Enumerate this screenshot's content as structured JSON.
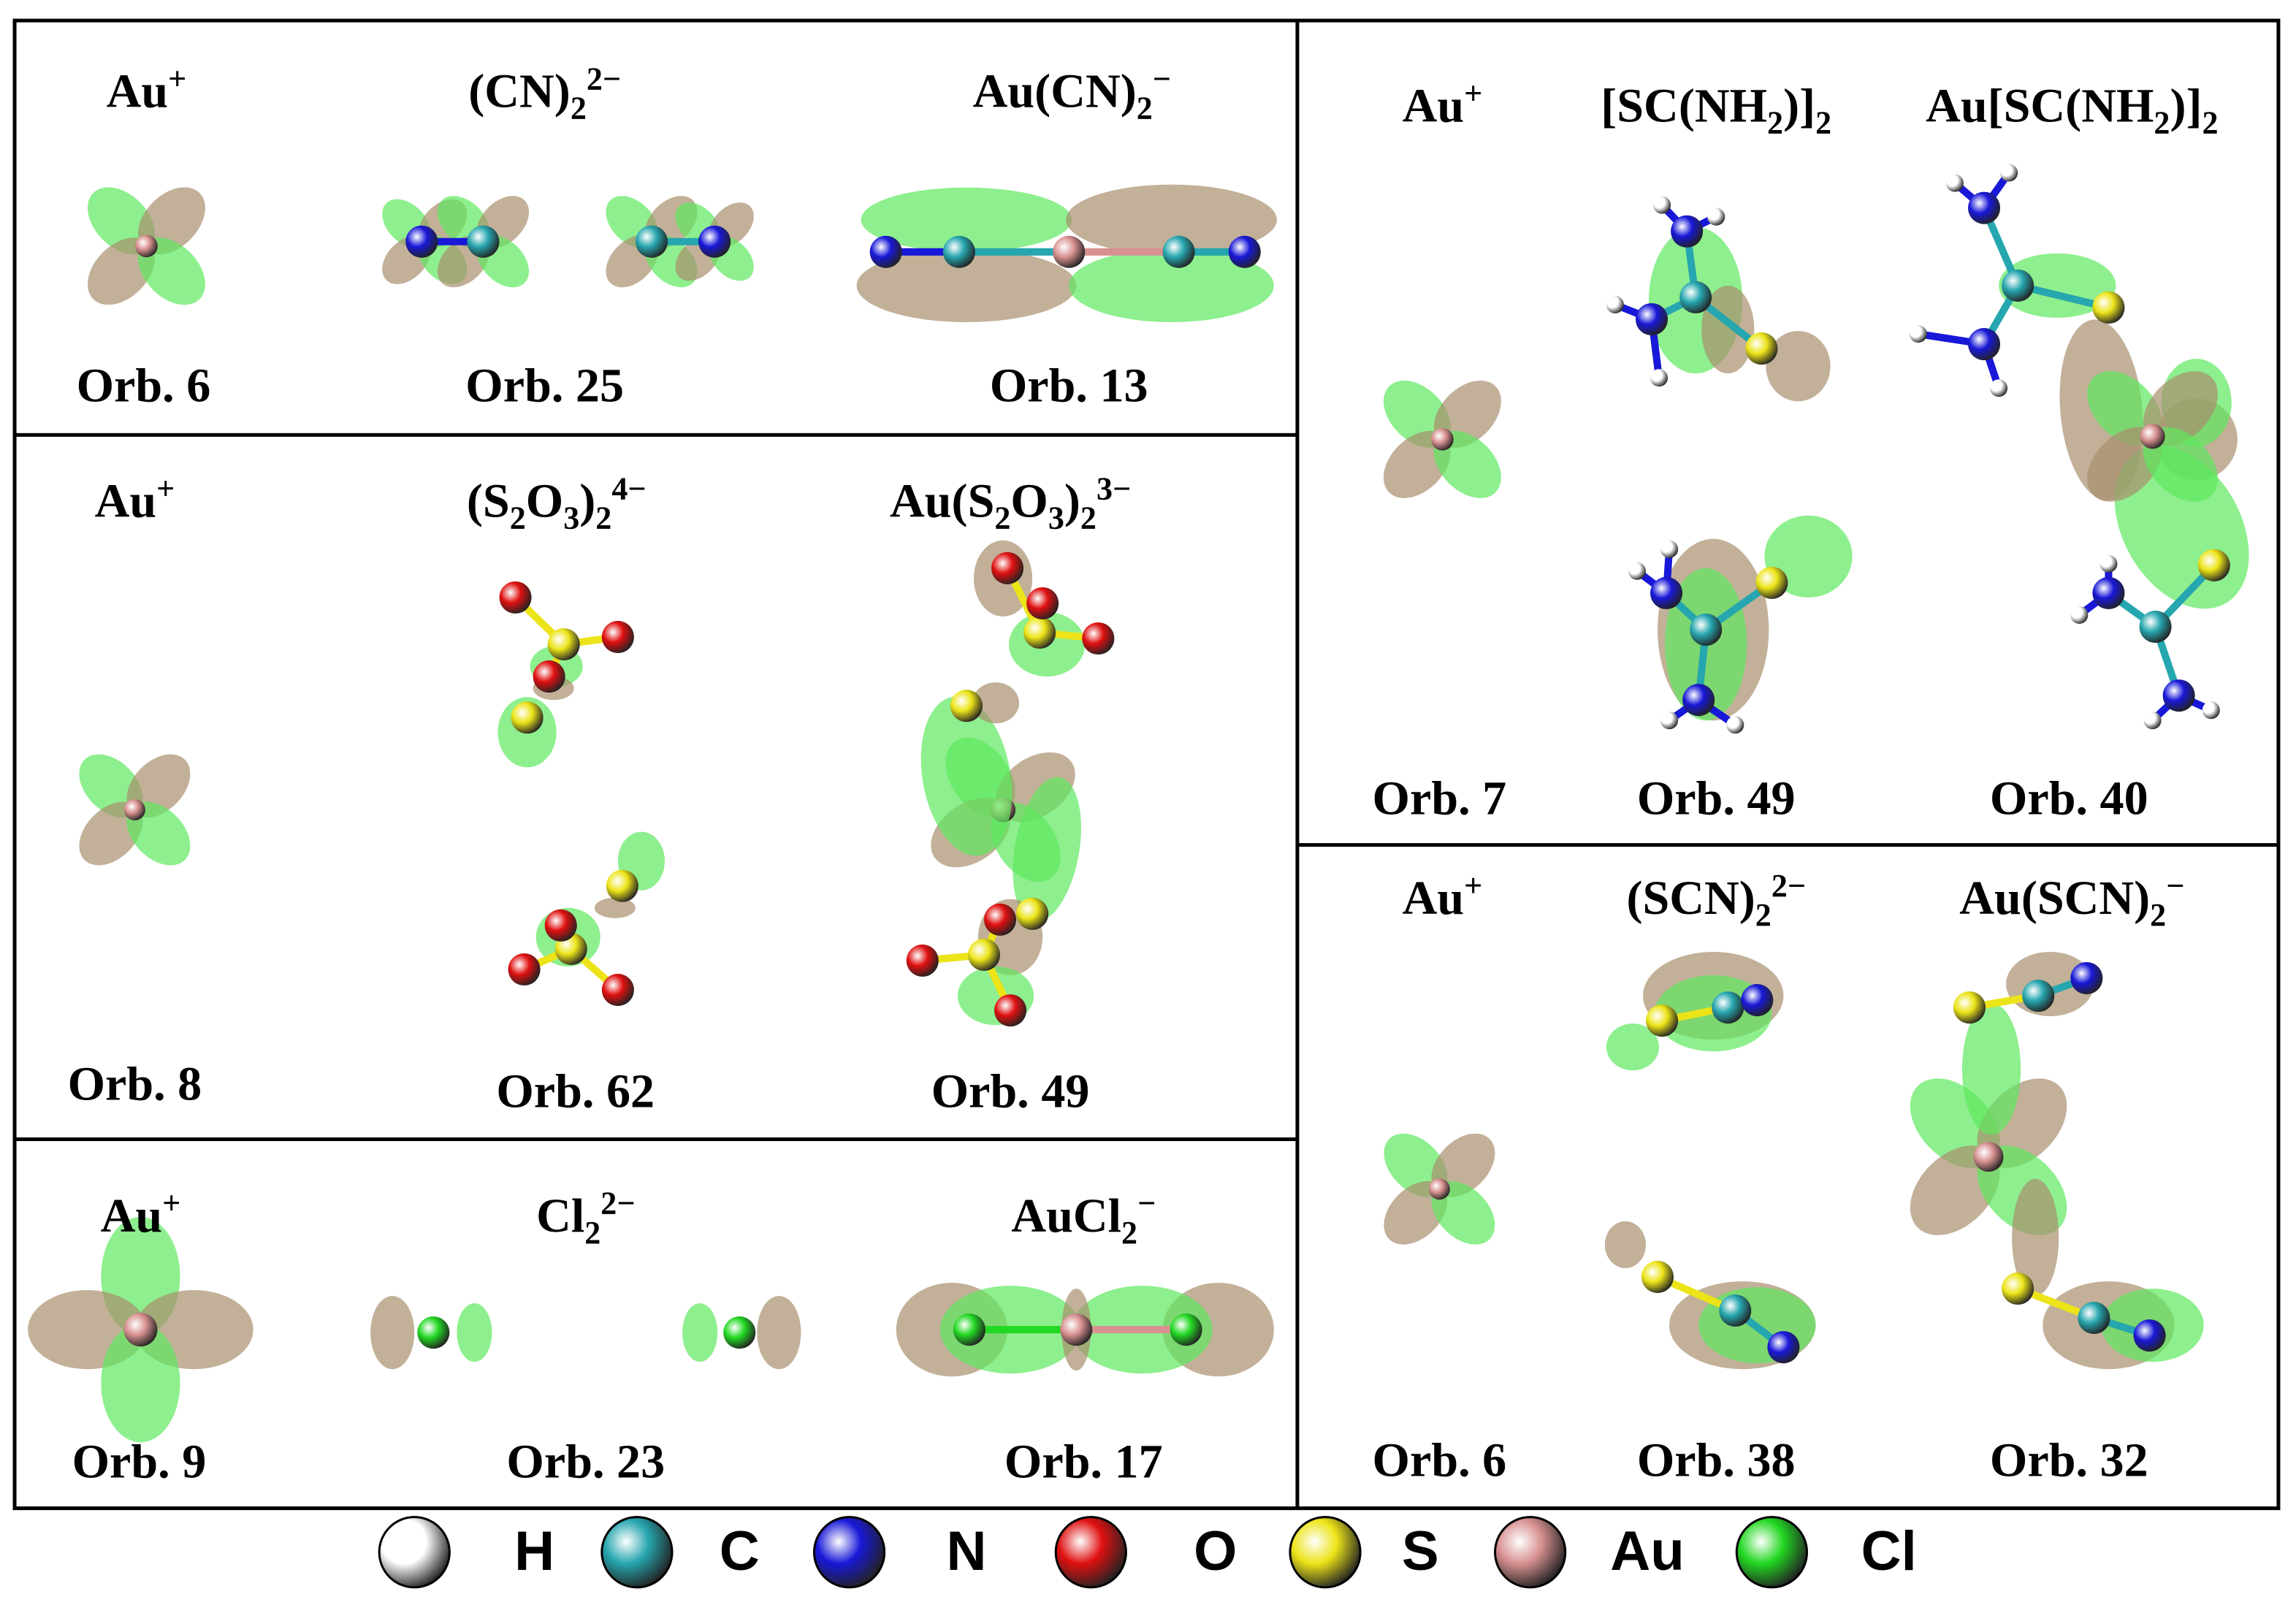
{
  "panels": [
    {
      "columns": [
        {
          "species": [
            {
              "text": "Au"
            },
            {
              "text": "+",
              "style": "sup"
            }
          ],
          "orbital": "Orb. 6"
        },
        {
          "species": [
            {
              "text": "(CN)"
            },
            {
              "text": "2",
              "style": "sub"
            },
            {
              "text": "2−",
              "style": "sup"
            }
          ],
          "orbital": "Orb. 25"
        },
        {
          "species": [
            {
              "text": "Au(CN)"
            },
            {
              "text": "2",
              "style": "sub"
            },
            {
              "text": "−",
              "style": "sup"
            }
          ],
          "orbital": "Orb. 13"
        }
      ]
    },
    {
      "columns": [
        {
          "species": [
            {
              "text": "Au"
            },
            {
              "text": "+",
              "style": "sup"
            }
          ],
          "orbital": "Orb. 8"
        },
        {
          "species": [
            {
              "text": "(S"
            },
            {
              "text": "2",
              "style": "sub"
            },
            {
              "text": "O"
            },
            {
              "text": "3",
              "style": "sub"
            },
            {
              "text": ")"
            },
            {
              "text": "2",
              "style": "sub"
            },
            {
              "text": "4−",
              "style": "sup"
            }
          ],
          "orbital": "Orb. 62"
        },
        {
          "species": [
            {
              "text": "Au(S"
            },
            {
              "text": "2",
              "style": "sub"
            },
            {
              "text": "O"
            },
            {
              "text": "3",
              "style": "sub"
            },
            {
              "text": ")"
            },
            {
              "text": "2",
              "style": "sub"
            },
            {
              "text": "3−",
              "style": "sup"
            }
          ],
          "orbital": "Orb. 49"
        }
      ]
    },
    {
      "columns": [
        {
          "species": [
            {
              "text": "Au"
            },
            {
              "text": "+",
              "style": "sup"
            }
          ],
          "orbital": "Orb. 9"
        },
        {
          "species": [
            {
              "text": "Cl"
            },
            {
              "text": "2",
              "style": "sub"
            },
            {
              "text": "2−",
              "style": "sup"
            }
          ],
          "orbital": "Orb. 23"
        },
        {
          "species": [
            {
              "text": "AuCl"
            },
            {
              "text": "2",
              "style": "sub"
            },
            {
              "text": "−",
              "style": "sup"
            }
          ],
          "orbital": "Orb. 17"
        }
      ]
    },
    {
      "columns": [
        {
          "species": [
            {
              "text": "Au"
            },
            {
              "text": "+",
              "style": "sup"
            }
          ],
          "orbital": "Orb. 7"
        },
        {
          "species": [
            {
              "text": "[SC(NH"
            },
            {
              "text": "2",
              "style": "sub"
            },
            {
              "text": ")]"
            },
            {
              "text": "2",
              "style": "sub"
            }
          ],
          "orbital": "Orb. 49"
        },
        {
          "species": [
            {
              "text": "Au[SC(NH"
            },
            {
              "text": "2",
              "style": "sub"
            },
            {
              "text": ")]"
            },
            {
              "text": "2",
              "style": "sub"
            }
          ],
          "orbital": "Orb. 40"
        }
      ]
    },
    {
      "columns": [
        {
          "species": [
            {
              "text": "Au"
            },
            {
              "text": "+",
              "style": "sup"
            }
          ],
          "orbital": "Orb. 6"
        },
        {
          "species": [
            {
              "text": "(SCN)"
            },
            {
              "text": "2",
              "style": "sub"
            },
            {
              "text": "2−",
              "style": "sup"
            }
          ],
          "orbital": "Orb. 38"
        },
        {
          "species": [
            {
              "text": "Au(SCN)"
            },
            {
              "text": "2",
              "style": "sub"
            },
            {
              "text": "−",
              "style": "sup"
            }
          ],
          "orbital": "Orb. 32"
        }
      ]
    }
  ],
  "legend": [
    {
      "element": "H",
      "color": "#ffffff"
    },
    {
      "element": "C",
      "color": "#26a6ae"
    },
    {
      "element": "N",
      "color": "#1818d8"
    },
    {
      "element": "O",
      "color": "#e01010"
    },
    {
      "element": "S",
      "color": "#ece418"
    },
    {
      "element": "Au",
      "color": "#d89090"
    },
    {
      "element": "Cl",
      "color": "#22d822"
    }
  ]
}
